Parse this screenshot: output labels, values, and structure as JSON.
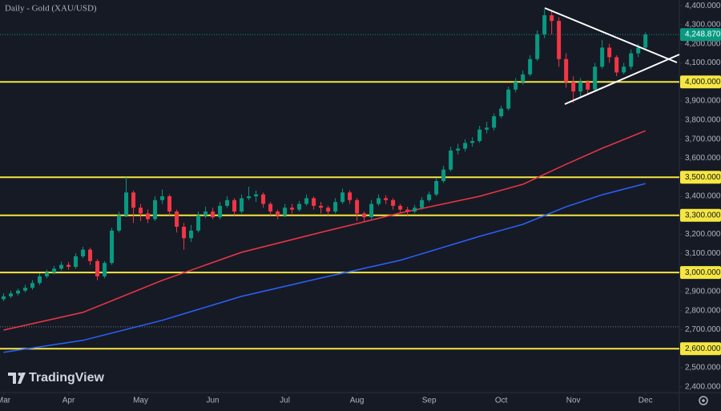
{
  "chart_data": {
    "type": "candlestick",
    "title": "Daily - Gold (XAU/USD)",
    "watermark": "TradingView",
    "up_color": "#089981",
    "down_color": "#f23645",
    "open": [
      2860,
      2875,
      2890,
      2905,
      2920,
      2945,
      2980,
      3000,
      3020,
      3040,
      3030,
      3085,
      3120,
      3060,
      2980,
      3050,
      3220,
      3300,
      3420,
      3340,
      3310,
      3280,
      3380,
      3400,
      3320,
      3240,
      3180,
      3220,
      3300,
      3320,
      3290,
      3350,
      3380,
      3320,
      3390,
      3400,
      3410,
      3360,
      3320,
      3300,
      3340,
      3330,
      3360,
      3390,
      3350,
      3340,
      3320,
      3370,
      3420,
      3380,
      3310,
      3290,
      3360,
      3390,
      3380,
      3350,
      3330,
      3320,
      3340,
      3380,
      3410,
      3480,
      3540,
      3640,
      3650,
      3680,
      3690,
      3750,
      3760,
      3820,
      3860,
      3960,
      4000,
      4040,
      4120,
      4250,
      4350,
      4320,
      4120,
      4000,
      3950,
      4000,
      3960,
      4080,
      4180,
      4130,
      4050,
      4080,
      4150,
      4180
    ],
    "high": [
      2890,
      2905,
      2915,
      2935,
      2960,
      2995,
      3015,
      3035,
      3057,
      3055,
      3100,
      3135,
      3130,
      3070,
      3060,
      3235,
      3320,
      3500,
      3430,
      3360,
      3330,
      3400,
      3435,
      3410,
      3330,
      3260,
      3250,
      3320,
      3345,
      3340,
      3370,
      3400,
      3390,
      3410,
      3450,
      3430,
      3420,
      3370,
      3330,
      3360,
      3360,
      3375,
      3410,
      3400,
      3370,
      3350,
      3390,
      3440,
      3430,
      3390,
      3320,
      3380,
      3410,
      3405,
      3390,
      3360,
      3345,
      3355,
      3395,
      3425,
      3495,
      3560,
      3660,
      3675,
      3700,
      3710,
      3770,
      3790,
      3835,
      3875,
      3975,
      4020,
      4060,
      4140,
      4270,
      4381,
      4375,
      4340,
      4150,
      4030,
      4020,
      4010,
      4100,
      4220,
      4200,
      4140,
      4100,
      4170,
      4200,
      4260
    ],
    "low": [
      2850,
      2865,
      2880,
      2895,
      2910,
      2935,
      2970,
      2990,
      3010,
      3015,
      3020,
      3075,
      3040,
      2960,
      2970,
      3040,
      3210,
      3290,
      3260,
      3270,
      3260,
      3270,
      3360,
      3300,
      3210,
      3120,
      3160,
      3210,
      3285,
      3280,
      3280,
      3340,
      3300,
      3310,
      3380,
      3370,
      3340,
      3300,
      3280,
      3290,
      3310,
      3320,
      3350,
      3330,
      3310,
      3300,
      3310,
      3360,
      3360,
      3270,
      3270,
      3280,
      3350,
      3360,
      3330,
      3310,
      3300,
      3310,
      3330,
      3370,
      3400,
      3470,
      3530,
      3620,
      3635,
      3660,
      3680,
      3730,
      3745,
      3810,
      3850,
      3945,
      3985,
      4030,
      4110,
      4230,
      4250,
      4080,
      3970,
      3890,
      3920,
      3930,
      3950,
      4070,
      4100,
      4030,
      4040,
      4065,
      4130,
      4170
    ],
    "close": [
      2875,
      2890,
      2905,
      2920,
      2945,
      2980,
      3000,
      3020,
      3040,
      3030,
      3085,
      3120,
      3060,
      2980,
      3050,
      3220,
      3300,
      3420,
      3340,
      3310,
      3280,
      3380,
      3400,
      3320,
      3240,
      3180,
      3220,
      3300,
      3320,
      3290,
      3350,
      3380,
      3320,
      3390,
      3400,
      3410,
      3360,
      3320,
      3300,
      3340,
      3330,
      3360,
      3390,
      3350,
      3340,
      3320,
      3370,
      3420,
      3380,
      3310,
      3290,
      3360,
      3390,
      3380,
      3350,
      3330,
      3320,
      3340,
      3380,
      3410,
      3480,
      3540,
      3640,
      3650,
      3680,
      3690,
      3750,
      3760,
      3820,
      3860,
      3960,
      4000,
      4040,
      4120,
      4250,
      4350,
      4320,
      4120,
      4000,
      3950,
      4000,
      3960,
      4080,
      4180,
      4130,
      4050,
      4080,
      4150,
      4180,
      4249
    ],
    "series": [
      {
        "color": "#f23645",
        "x": [
          0,
          11,
          22,
          33,
          44,
          55,
          66,
          72,
          78,
          83,
          89
        ],
        "values": [
          2698,
          2791,
          2959,
          3106,
          3211,
          3312,
          3400,
          3463,
          3568,
          3652,
          3744
        ]
      },
      {
        "color": "#2962ff",
        "x": [
          0,
          11,
          22,
          33,
          44,
          55,
          66,
          72,
          78,
          83,
          89
        ],
        "values": [
          2581,
          2644,
          2749,
          2875,
          2971,
          3064,
          3190,
          3253,
          3345,
          3408,
          3467
        ]
      }
    ],
    "levels": [
      4000,
      3500,
      3300,
      3000,
      2600
    ],
    "level_color": "#f5e642",
    "dotted_levels": [
      2715
    ],
    "last_price": {
      "value": 4248.87,
      "label": "4,248.870"
    },
    "xlim": [
      -0.5,
      93.7
    ],
    "xticks": [
      {
        "value": 0,
        "label": "Mar"
      },
      {
        "value": 9,
        "label": "Apr"
      },
      {
        "value": 19,
        "label": "May"
      },
      {
        "value": 29,
        "label": "Jun"
      },
      {
        "value": 39,
        "label": "Jul"
      },
      {
        "value": 49,
        "label": "Aug"
      },
      {
        "value": 59,
        "label": "Sep"
      },
      {
        "value": 69,
        "label": "Oct"
      },
      {
        "value": 79,
        "label": "Nov"
      },
      {
        "value": 89,
        "label": "Dec"
      }
    ],
    "ylim": [
      2370,
      4430
    ],
    "yticks": [
      {
        "value": 2400,
        "label": "2,400.000"
      },
      {
        "value": 2500,
        "label": "2,500.000"
      },
      {
        "value": 2600,
        "label": "2,600.000"
      },
      {
        "value": 2700,
        "label": "2,700.000"
      },
      {
        "value": 2800,
        "label": "2,800.000"
      },
      {
        "value": 2900,
        "label": "2,900.000"
      },
      {
        "value": 3000,
        "label": "3,000.000"
      },
      {
        "value": 3100,
        "label": "3,100.000"
      },
      {
        "value": 3200,
        "label": "3,200.000"
      },
      {
        "value": 3300,
        "label": "3,300.000"
      },
      {
        "value": 3400,
        "label": "3,400.000"
      },
      {
        "value": 3500,
        "label": "3,500.000"
      },
      {
        "value": 3600,
        "label": "3,600.000"
      },
      {
        "value": 3700,
        "label": "3,700.000"
      },
      {
        "value": 3800,
        "label": "3,800.000"
      },
      {
        "value": 3900,
        "label": "3,900.000"
      },
      {
        "value": 4000,
        "label": "4,000.000"
      },
      {
        "value": 4100,
        "label": "4,100.000"
      },
      {
        "value": 4200,
        "label": "4,200.000"
      },
      {
        "value": 4300,
        "label": "4,300.000"
      },
      {
        "value": 4400,
        "label": "4,400.000"
      }
    ],
    "grid": false
  }
}
